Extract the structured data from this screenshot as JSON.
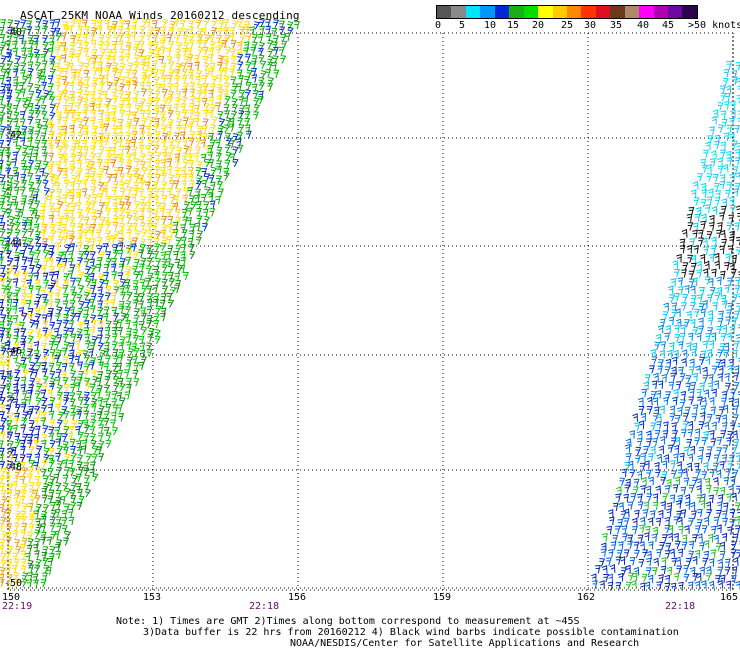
{
  "title": "ASCAT 25KM NOAA Winds 20160212 descending",
  "legend": {
    "colors": [
      "#555555",
      "#8a8a8a",
      "#00e5ff",
      "#0096ff",
      "#0028d8",
      "#18b018",
      "#00dd00",
      "#ffff00",
      "#ffcc00",
      "#ff8800",
      "#ff3300",
      "#e01020",
      "#6b3a1a",
      "#b08868",
      "#ff00ff",
      "#b000b0",
      "#6a0aa0",
      "#300050"
    ],
    "labels": [
      "0",
      "5",
      "10",
      "15",
      "20",
      "25",
      "30",
      "35",
      "40",
      "45",
      ">50 knots"
    ]
  },
  "axes": {
    "lon_labels": [
      "150",
      "153",
      "156",
      "159",
      "162",
      "165"
    ],
    "lat_labels": [
      "-40",
      "-42",
      "-44",
      "-46",
      "-48",
      "-50"
    ],
    "time_labels": [
      "22:19",
      "22:18",
      "22:18"
    ]
  },
  "notes": {
    "line1": "Note: 1) Times are GMT 2)Times along bottom correspond to measurement at ~45S",
    "line2": "3)Data buffer is 22 hrs from 20160212 4) Black wind barbs indicate possible contamination",
    "line3": "NOAA/NESDIS/Center for Satellite Applications and Research"
  }
}
